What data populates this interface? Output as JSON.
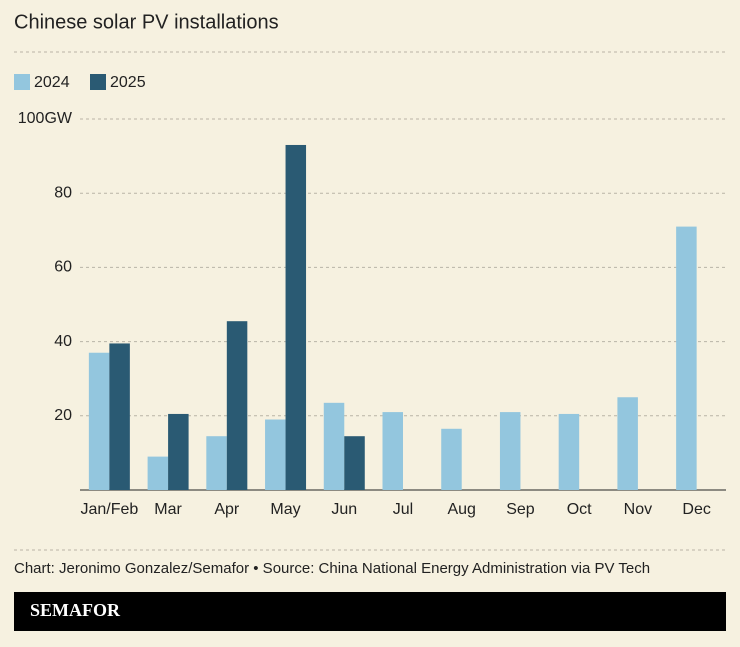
{
  "chart_data": {
    "type": "bar",
    "title": "Chinese solar PV installations",
    "categories": [
      "Jan/Feb",
      "Mar",
      "Apr",
      "May",
      "Jun",
      "Jul",
      "Aug",
      "Sep",
      "Oct",
      "Nov",
      "Dec"
    ],
    "series": [
      {
        "name": "2024",
        "color": "#93c6de",
        "values": [
          37,
          9,
          14.5,
          19,
          23.5,
          21,
          16.5,
          21,
          20.5,
          25,
          71
        ]
      },
      {
        "name": "2025",
        "color": "#2a5a73",
        "values": [
          39.5,
          20.5,
          45.5,
          93,
          14.5,
          null,
          null,
          null,
          null,
          null,
          null
        ]
      }
    ],
    "ylim": [
      0,
      100
    ],
    "yticks": [
      20,
      40,
      60,
      80,
      {
        "value": 100,
        "label": "100GW"
      }
    ],
    "grid": true
  },
  "footer": {
    "source": "Chart: Jeronimo Gonzalez/Semafor • Source: China National Energy Administration via PV Tech",
    "brand": "SEMAFOR"
  }
}
